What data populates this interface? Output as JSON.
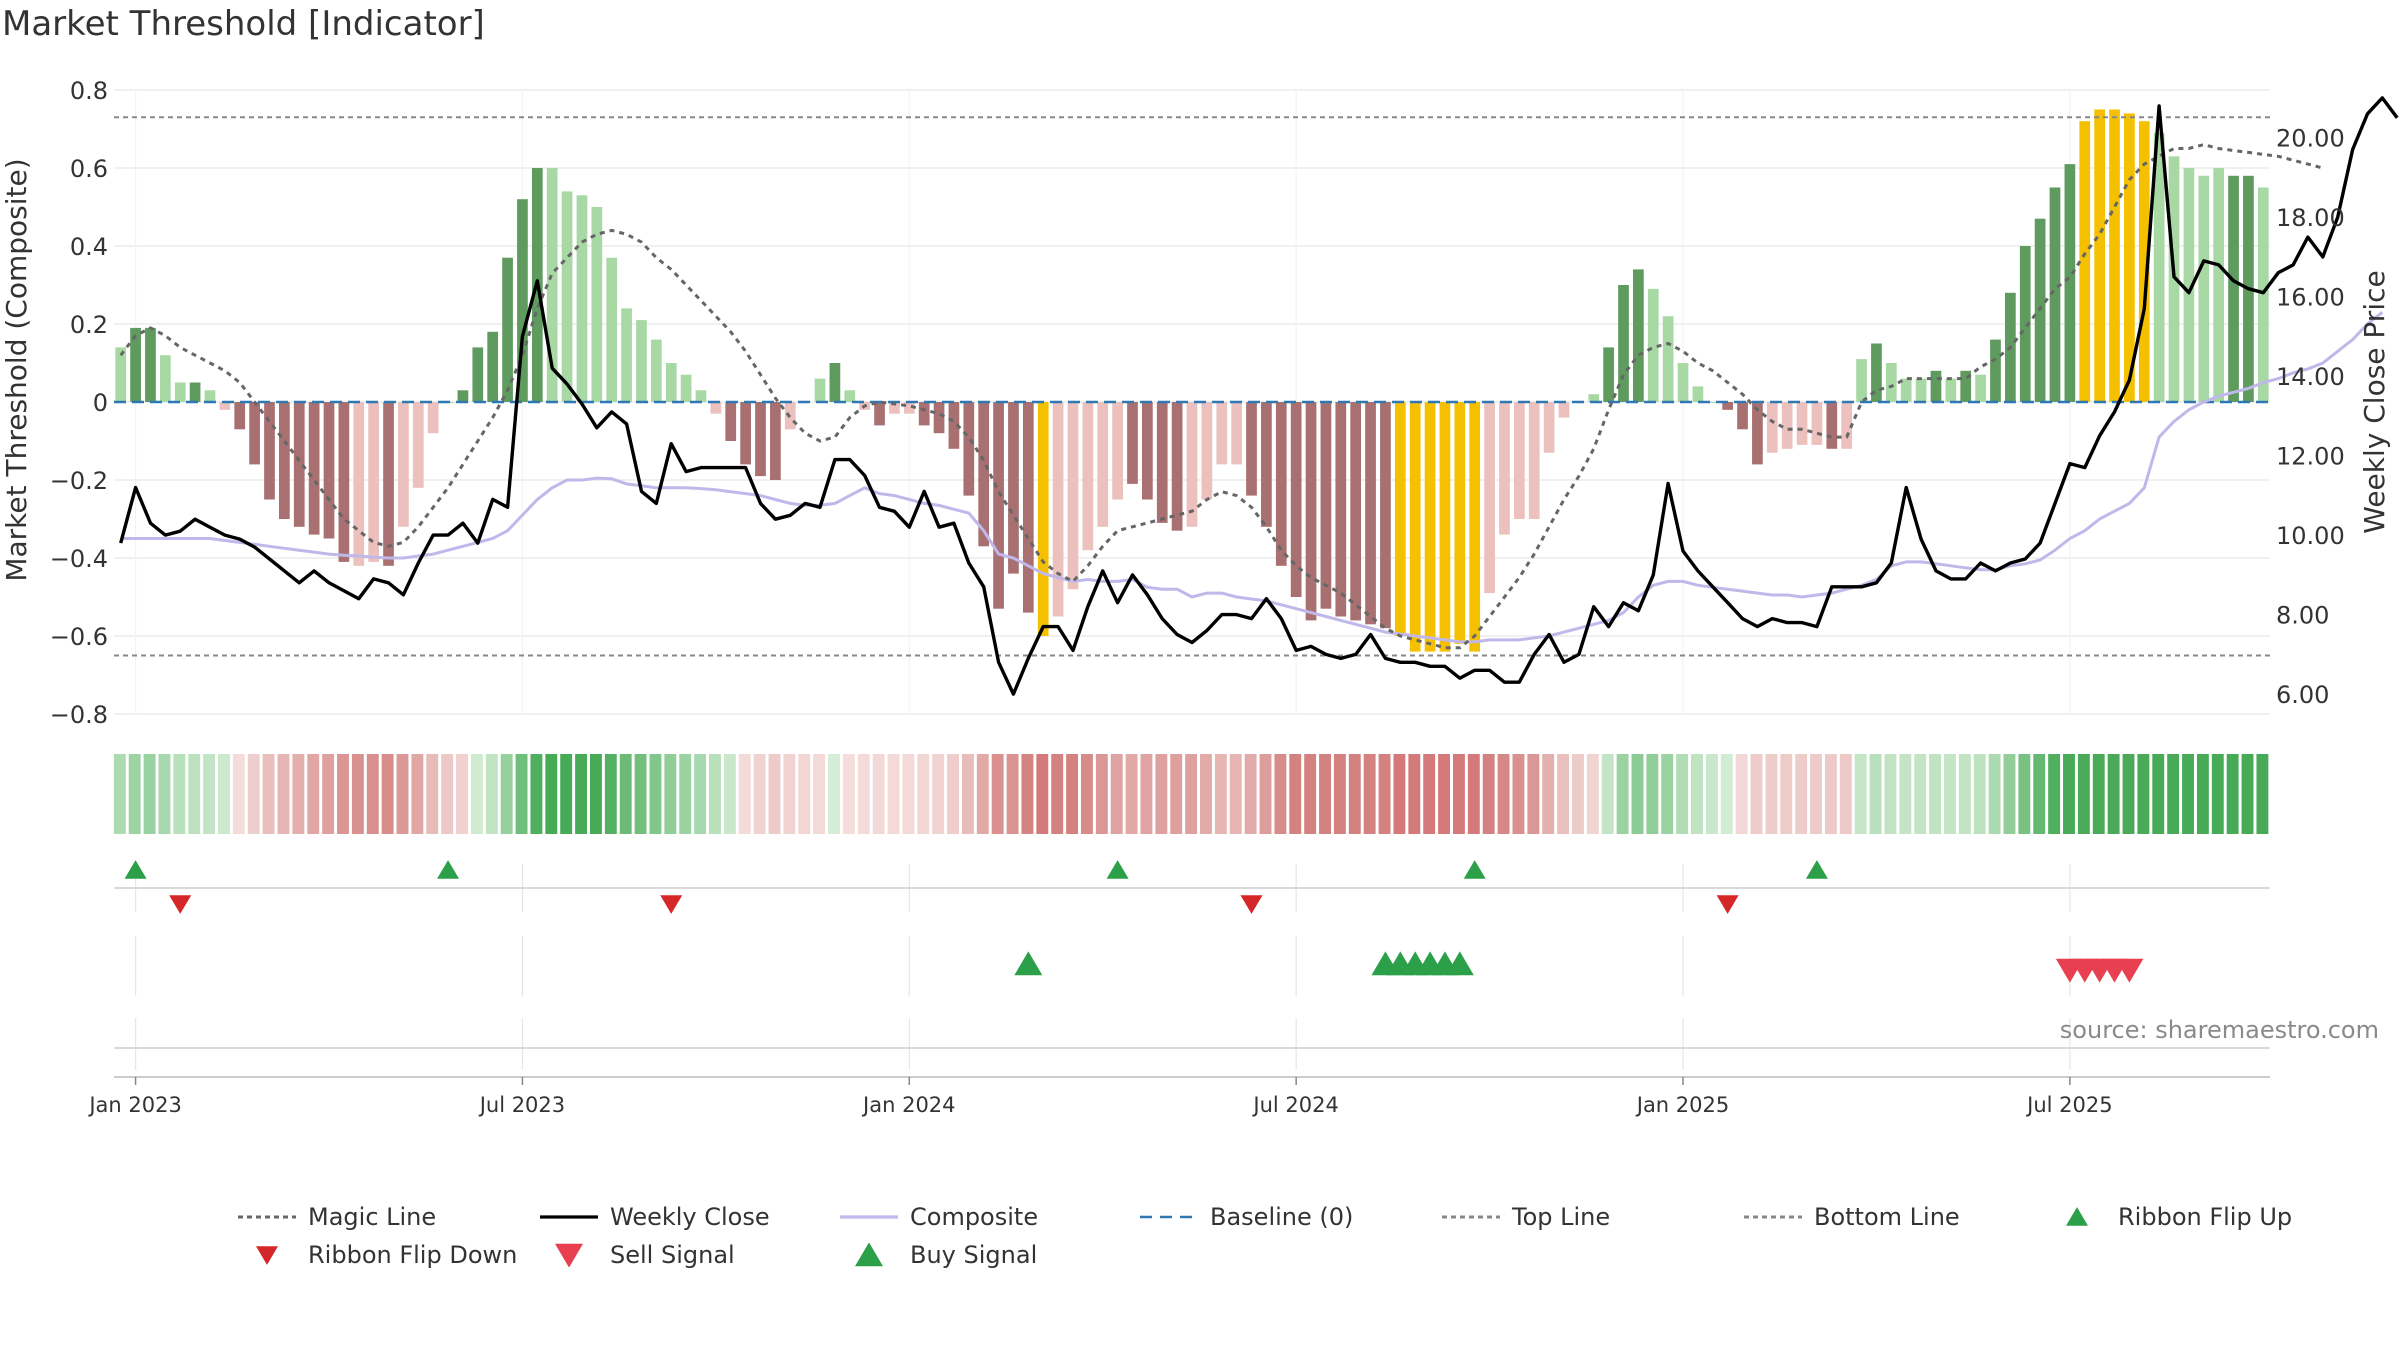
{
  "page_title": "Market Threshold [Indicator]",
  "source": "source: sharemaestro.com",
  "y_left_label": "Market Threshold (Composite)",
  "y_right_label": "Weekly Close Price",
  "y_left_ticks": [
    "0.8",
    "0.6",
    "0.4",
    "0.2",
    "0",
    "−0.2",
    "−0.4",
    "−0.6",
    "−0.8"
  ],
  "y_right_ticks": [
    "20.00",
    "18.00",
    "16.00",
    "14.00",
    "12.00",
    "10.00",
    "8.00",
    "6.00"
  ],
  "x_ticks": [
    "Jan 2023",
    "Jul 2023",
    "Jan 2024",
    "Jul 2024",
    "Jan 2025",
    "Jul 2025"
  ],
  "legend": [
    {
      "label": "Magic Line",
      "icon": "dotted-line",
      "color": "#666666"
    },
    {
      "label": "Weekly Close",
      "icon": "solid-line",
      "color": "#000000"
    },
    {
      "label": "Composite",
      "icon": "solid-line",
      "color": "#c0b8ea"
    },
    {
      "label": "Baseline (0)",
      "icon": "dashed-line",
      "color": "#2f78b4"
    },
    {
      "label": "Top Line",
      "icon": "dotted-line",
      "color": "#888888"
    },
    {
      "label": "Bottom Line",
      "icon": "dotted-line",
      "color": "#888888"
    },
    {
      "label": "Ribbon Flip Up",
      "icon": "triangle-up-icon",
      "color": "#2ca048"
    },
    {
      "label": "Ribbon Flip Down",
      "icon": "triangle-down-icon",
      "color": "#d62728"
    },
    {
      "label": "Sell Signal",
      "icon": "triangle-down-icon",
      "color": "#e84050"
    },
    {
      "label": "Buy Signal",
      "icon": "triangle-up-icon",
      "color": "#2ca048"
    }
  ],
  "colors": {
    "strong_up": "#5f9a5f",
    "light_up": "#a8d8a4",
    "strong_down": "#a87070",
    "light_down": "#ecc0bc",
    "extreme": "#f5c000",
    "baseline": "#2f78b4"
  },
  "chart_data": {
    "type": "bar",
    "x_start": "2022-12-26",
    "x_interval": "1 week",
    "ylim_left": [
      -0.8,
      0.8
    ],
    "ylim_right": [
      5.5,
      21.2
    ],
    "top_line": 0.73,
    "bottom_line": -0.65,
    "baseline": 0,
    "composite_bars": [
      {
        "v": 0.14,
        "s": "lu"
      },
      {
        "v": 0.19,
        "s": "su"
      },
      {
        "v": 0.19,
        "s": "su"
      },
      {
        "v": 0.12,
        "s": "lu"
      },
      {
        "v": 0.05,
        "s": "lu"
      },
      {
        "v": 0.05,
        "s": "su"
      },
      {
        "v": 0.03,
        "s": "lu"
      },
      {
        "v": -0.02,
        "s": "ld"
      },
      {
        "v": -0.07,
        "s": "sd"
      },
      {
        "v": -0.16,
        "s": "sd"
      },
      {
        "v": -0.25,
        "s": "sd"
      },
      {
        "v": -0.3,
        "s": "sd"
      },
      {
        "v": -0.32,
        "s": "sd"
      },
      {
        "v": -0.34,
        "s": "sd"
      },
      {
        "v": -0.35,
        "s": "sd"
      },
      {
        "v": -0.41,
        "s": "sd"
      },
      {
        "v": -0.42,
        "s": "ld"
      },
      {
        "v": -0.41,
        "s": "ld"
      },
      {
        "v": -0.42,
        "s": "sd"
      },
      {
        "v": -0.32,
        "s": "ld"
      },
      {
        "v": -0.22,
        "s": "ld"
      },
      {
        "v": -0.08,
        "s": "ld"
      },
      {
        "v": 0,
        "s": "lu"
      },
      {
        "v": 0.03,
        "s": "su"
      },
      {
        "v": 0.14,
        "s": "su"
      },
      {
        "v": 0.18,
        "s": "su"
      },
      {
        "v": 0.37,
        "s": "su"
      },
      {
        "v": 0.52,
        "s": "su"
      },
      {
        "v": 0.6,
        "s": "su"
      },
      {
        "v": 0.6,
        "s": "lu"
      },
      {
        "v": 0.54,
        "s": "lu"
      },
      {
        "v": 0.53,
        "s": "lu"
      },
      {
        "v": 0.5,
        "s": "lu"
      },
      {
        "v": 0.37,
        "s": "lu"
      },
      {
        "v": 0.24,
        "s": "lu"
      },
      {
        "v": 0.21,
        "s": "lu"
      },
      {
        "v": 0.16,
        "s": "lu"
      },
      {
        "v": 0.1,
        "s": "lu"
      },
      {
        "v": 0.07,
        "s": "lu"
      },
      {
        "v": 0.03,
        "s": "lu"
      },
      {
        "v": -0.03,
        "s": "ld"
      },
      {
        "v": -0.1,
        "s": "sd"
      },
      {
        "v": -0.16,
        "s": "sd"
      },
      {
        "v": -0.19,
        "s": "sd"
      },
      {
        "v": -0.2,
        "s": "sd"
      },
      {
        "v": -0.07,
        "s": "ld"
      },
      {
        "v": 0,
        "s": "lu"
      },
      {
        "v": 0.06,
        "s": "lu"
      },
      {
        "v": 0.1,
        "s": "su"
      },
      {
        "v": 0.03,
        "s": "lu"
      },
      {
        "v": -0.02,
        "s": "ld"
      },
      {
        "v": -0.06,
        "s": "sd"
      },
      {
        "v": -0.03,
        "s": "ld"
      },
      {
        "v": -0.03,
        "s": "ld"
      },
      {
        "v": -0.06,
        "s": "sd"
      },
      {
        "v": -0.08,
        "s": "sd"
      },
      {
        "v": -0.12,
        "s": "sd"
      },
      {
        "v": -0.24,
        "s": "sd"
      },
      {
        "v": -0.37,
        "s": "sd"
      },
      {
        "v": -0.53,
        "s": "sd"
      },
      {
        "v": -0.44,
        "s": "sd"
      },
      {
        "v": -0.54,
        "s": "sd"
      },
      {
        "v": -0.6,
        "s": "ex"
      },
      {
        "v": -0.55,
        "s": "ld"
      },
      {
        "v": -0.48,
        "s": "ld"
      },
      {
        "v": -0.38,
        "s": "ld"
      },
      {
        "v": -0.32,
        "s": "ld"
      },
      {
        "v": -0.25,
        "s": "ld"
      },
      {
        "v": -0.21,
        "s": "sd"
      },
      {
        "v": -0.25,
        "s": "sd"
      },
      {
        "v": -0.31,
        "s": "sd"
      },
      {
        "v": -0.33,
        "s": "sd"
      },
      {
        "v": -0.32,
        "s": "ld"
      },
      {
        "v": -0.25,
        "s": "ld"
      },
      {
        "v": -0.16,
        "s": "ld"
      },
      {
        "v": -0.16,
        "s": "ld"
      },
      {
        "v": -0.24,
        "s": "sd"
      },
      {
        "v": -0.32,
        "s": "sd"
      },
      {
        "v": -0.42,
        "s": "sd"
      },
      {
        "v": -0.5,
        "s": "sd"
      },
      {
        "v": -0.56,
        "s": "sd"
      },
      {
        "v": -0.53,
        "s": "sd"
      },
      {
        "v": -0.55,
        "s": "sd"
      },
      {
        "v": -0.56,
        "s": "sd"
      },
      {
        "v": -0.57,
        "s": "sd"
      },
      {
        "v": -0.58,
        "s": "sd"
      },
      {
        "v": -0.6,
        "s": "ex"
      },
      {
        "v": -0.64,
        "s": "ex"
      },
      {
        "v": -0.64,
        "s": "ex"
      },
      {
        "v": -0.64,
        "s": "ex"
      },
      {
        "v": -0.62,
        "s": "ex"
      },
      {
        "v": -0.64,
        "s": "ex"
      },
      {
        "v": -0.49,
        "s": "ld"
      },
      {
        "v": -0.34,
        "s": "ld"
      },
      {
        "v": -0.3,
        "s": "ld"
      },
      {
        "v": -0.3,
        "s": "ld"
      },
      {
        "v": -0.13,
        "s": "ld"
      },
      {
        "v": -0.04,
        "s": "ld"
      },
      {
        "v": 0,
        "s": "lu"
      },
      {
        "v": 0.02,
        "s": "lu"
      },
      {
        "v": 0.14,
        "s": "su"
      },
      {
        "v": 0.3,
        "s": "su"
      },
      {
        "v": 0.34,
        "s": "su"
      },
      {
        "v": 0.29,
        "s": "lu"
      },
      {
        "v": 0.22,
        "s": "lu"
      },
      {
        "v": 0.1,
        "s": "lu"
      },
      {
        "v": 0.04,
        "s": "lu"
      },
      {
        "v": 0,
        "s": "lu"
      },
      {
        "v": -0.02,
        "s": "sd"
      },
      {
        "v": -0.07,
        "s": "sd"
      },
      {
        "v": -0.16,
        "s": "sd"
      },
      {
        "v": -0.13,
        "s": "ld"
      },
      {
        "v": -0.12,
        "s": "ld"
      },
      {
        "v": -0.11,
        "s": "ld"
      },
      {
        "v": -0.11,
        "s": "ld"
      },
      {
        "v": -0.12,
        "s": "sd"
      },
      {
        "v": -0.12,
        "s": "ld"
      },
      {
        "v": 0.11,
        "s": "lu"
      },
      {
        "v": 0.15,
        "s": "su"
      },
      {
        "v": 0.1,
        "s": "lu"
      },
      {
        "v": 0.06,
        "s": "lu"
      },
      {
        "v": 0.06,
        "s": "lu"
      },
      {
        "v": 0.08,
        "s": "su"
      },
      {
        "v": 0.06,
        "s": "lu"
      },
      {
        "v": 0.08,
        "s": "su"
      },
      {
        "v": 0.07,
        "s": "lu"
      },
      {
        "v": 0.16,
        "s": "su"
      },
      {
        "v": 0.28,
        "s": "su"
      },
      {
        "v": 0.4,
        "s": "su"
      },
      {
        "v": 0.47,
        "s": "su"
      },
      {
        "v": 0.55,
        "s": "su"
      },
      {
        "v": 0.61,
        "s": "su"
      },
      {
        "v": 0.72,
        "s": "ex"
      },
      {
        "v": 0.75,
        "s": "ex"
      },
      {
        "v": 0.75,
        "s": "ex"
      },
      {
        "v": 0.74,
        "s": "ex"
      },
      {
        "v": 0.72,
        "s": "ex"
      },
      {
        "v": 0.69,
        "s": "lu"
      },
      {
        "v": 0.63,
        "s": "lu"
      },
      {
        "v": 0.6,
        "s": "lu"
      },
      {
        "v": 0.58,
        "s": "lu"
      },
      {
        "v": 0.6,
        "s": "lu"
      },
      {
        "v": 0.58,
        "s": "su"
      },
      {
        "v": 0.58,
        "s": "su"
      },
      {
        "v": 0.55,
        "s": "lu"
      }
    ],
    "weekly_close": [
      9.8,
      11.2,
      10.3,
      10.0,
      10.1,
      10.4,
      10.2,
      10.0,
      9.9,
      9.7,
      9.4,
      9.1,
      8.8,
      9.1,
      8.8,
      8.6,
      8.4,
      8.9,
      8.8,
      8.5,
      9.3,
      10.0,
      10.0,
      10.3,
      9.8,
      10.9,
      10.7,
      15.0,
      16.4,
      14.2,
      13.8,
      13.3,
      12.7,
      13.1,
      12.8,
      11.1,
      10.8,
      12.3,
      11.6,
      11.7,
      11.7,
      11.7,
      11.7,
      10.8,
      10.4,
      10.5,
      10.8,
      10.7,
      11.9,
      11.9,
      11.5,
      10.7,
      10.6,
      10.2,
      11.1,
      10.2,
      10.3,
      9.3,
      8.7,
      6.8,
      6.0,
      6.9,
      7.7,
      7.7,
      7.1,
      8.2,
      9.1,
      8.3,
      9.0,
      8.5,
      7.9,
      7.5,
      7.3,
      7.6,
      8.0,
      8.0,
      7.9,
      8.4,
      7.9,
      7.1,
      7.2,
      7.0,
      6.9,
      7.0,
      7.5,
      6.9,
      6.8,
      6.8,
      6.7,
      6.7,
      6.4,
      6.6,
      6.6,
      6.3,
      6.3,
      7.0,
      7.5,
      6.8,
      7.0,
      8.2,
      7.7,
      8.3,
      8.1,
      9.0,
      11.3,
      9.6,
      9.1,
      8.7,
      8.3,
      7.9,
      7.7,
      7.9,
      7.8,
      7.8,
      7.7,
      8.7,
      8.7,
      8.7,
      8.8,
      9.3,
      11.2,
      9.9,
      9.1,
      8.9,
      8.9,
      9.3,
      9.1,
      9.3,
      9.4,
      9.8,
      10.8,
      11.8,
      11.7,
      12.5,
      13.1,
      13.9,
      15.7,
      20.8,
      16.5,
      16.1,
      16.9,
      16.8,
      16.4,
      16.2,
      16.1,
      16.6,
      16.8,
      17.5,
      17.0,
      18.0,
      19.7,
      20.6,
      21.0,
      20.5
    ],
    "composite_line": [
      -0.35,
      -0.35,
      -0.35,
      -0.35,
      -0.35,
      -0.35,
      -0.35,
      -0.355,
      -0.36,
      -0.365,
      -0.37,
      -0.375,
      -0.38,
      -0.385,
      -0.39,
      -0.393,
      -0.395,
      -0.398,
      -0.4,
      -0.4,
      -0.395,
      -0.39,
      -0.38,
      -0.37,
      -0.36,
      -0.35,
      -0.33,
      -0.29,
      -0.25,
      -0.22,
      -0.2,
      -0.2,
      -0.195,
      -0.197,
      -0.21,
      -0.215,
      -0.22,
      -0.22,
      -0.22,
      -0.222,
      -0.225,
      -0.23,
      -0.235,
      -0.24,
      -0.25,
      -0.26,
      -0.265,
      -0.265,
      -0.26,
      -0.24,
      -0.22,
      -0.235,
      -0.24,
      -0.25,
      -0.26,
      -0.265,
      -0.275,
      -0.285,
      -0.33,
      -0.39,
      -0.4,
      -0.42,
      -0.44,
      -0.45,
      -0.46,
      -0.455,
      -0.46,
      -0.46,
      -0.455,
      -0.475,
      -0.48,
      -0.48,
      -0.5,
      -0.49,
      -0.49,
      -0.5,
      -0.505,
      -0.51,
      -0.52,
      -0.53,
      -0.54,
      -0.55,
      -0.56,
      -0.57,
      -0.58,
      -0.59,
      -0.595,
      -0.6,
      -0.605,
      -0.61,
      -0.615,
      -0.615,
      -0.61,
      -0.61,
      -0.61,
      -0.605,
      -0.6,
      -0.59,
      -0.58,
      -0.57,
      -0.56,
      -0.54,
      -0.5,
      -0.47,
      -0.46,
      -0.46,
      -0.47,
      -0.475,
      -0.48,
      -0.485,
      -0.49,
      -0.495,
      -0.495,
      -0.5,
      -0.495,
      -0.49,
      -0.48,
      -0.47,
      -0.455,
      -0.42,
      -0.41,
      -0.41,
      -0.415,
      -0.42,
      -0.425,
      -0.43,
      -0.43,
      -0.42,
      -0.415,
      -0.405,
      -0.38,
      -0.35,
      -0.33,
      -0.3,
      -0.28,
      -0.26,
      -0.22,
      -0.09,
      -0.05,
      -0.02,
      0.0,
      0.015,
      0.025,
      0.035,
      0.05,
      0.06,
      0.075,
      0.085,
      0.1,
      0.13,
      0.16,
      0.2,
      0.23
    ],
    "magic_line": [
      0.12,
      0.17,
      0.19,
      0.17,
      0.14,
      0.12,
      0.1,
      0.08,
      0.05,
      0.0,
      -0.05,
      -0.1,
      -0.15,
      -0.2,
      -0.25,
      -0.3,
      -0.33,
      -0.36,
      -0.37,
      -0.36,
      -0.32,
      -0.27,
      -0.22,
      -0.16,
      -0.1,
      -0.04,
      0.03,
      0.12,
      0.24,
      0.33,
      0.37,
      0.41,
      0.43,
      0.44,
      0.43,
      0.41,
      0.37,
      0.34,
      0.3,
      0.26,
      0.22,
      0.18,
      0.13,
      0.07,
      0.01,
      -0.04,
      -0.08,
      -0.1,
      -0.09,
      -0.04,
      -0.01,
      0.0,
      -0.005,
      -0.01,
      -0.02,
      -0.03,
      -0.05,
      -0.09,
      -0.15,
      -0.23,
      -0.29,
      -0.35,
      -0.41,
      -0.44,
      -0.46,
      -0.42,
      -0.37,
      -0.33,
      -0.32,
      -0.31,
      -0.3,
      -0.29,
      -0.28,
      -0.25,
      -0.23,
      -0.24,
      -0.27,
      -0.32,
      -0.38,
      -0.42,
      -0.45,
      -0.47,
      -0.49,
      -0.52,
      -0.55,
      -0.58,
      -0.6,
      -0.61,
      -0.62,
      -0.63,
      -0.63,
      -0.6,
      -0.55,
      -0.5,
      -0.45,
      -0.39,
      -0.32,
      -0.25,
      -0.19,
      -0.12,
      -0.02,
      0.07,
      0.12,
      0.14,
      0.15,
      0.13,
      0.1,
      0.08,
      0.05,
      0.02,
      -0.02,
      -0.05,
      -0.07,
      -0.07,
      -0.08,
      -0.09,
      -0.09,
      0.0,
      0.03,
      0.04,
      0.06,
      0.06,
      0.06,
      0.06,
      0.06,
      0.09,
      0.11,
      0.14,
      0.19,
      0.24,
      0.29,
      0.32,
      0.38,
      0.43,
      0.5,
      0.57,
      0.61,
      0.63,
      0.65,
      0.65,
      0.66,
      0.65,
      0.645,
      0.64,
      0.635,
      0.63,
      0.62,
      0.61,
      0.6
    ],
    "ribbon_flip_up": [
      1,
      22,
      67,
      91,
      114
    ],
    "ribbon_flip_down": [
      4,
      37,
      76,
      108
    ],
    "buy_signal": [
      61,
      85,
      86,
      87,
      88,
      89,
      90
    ],
    "sell_signal": [
      131,
      132,
      133,
      134,
      135
    ]
  }
}
